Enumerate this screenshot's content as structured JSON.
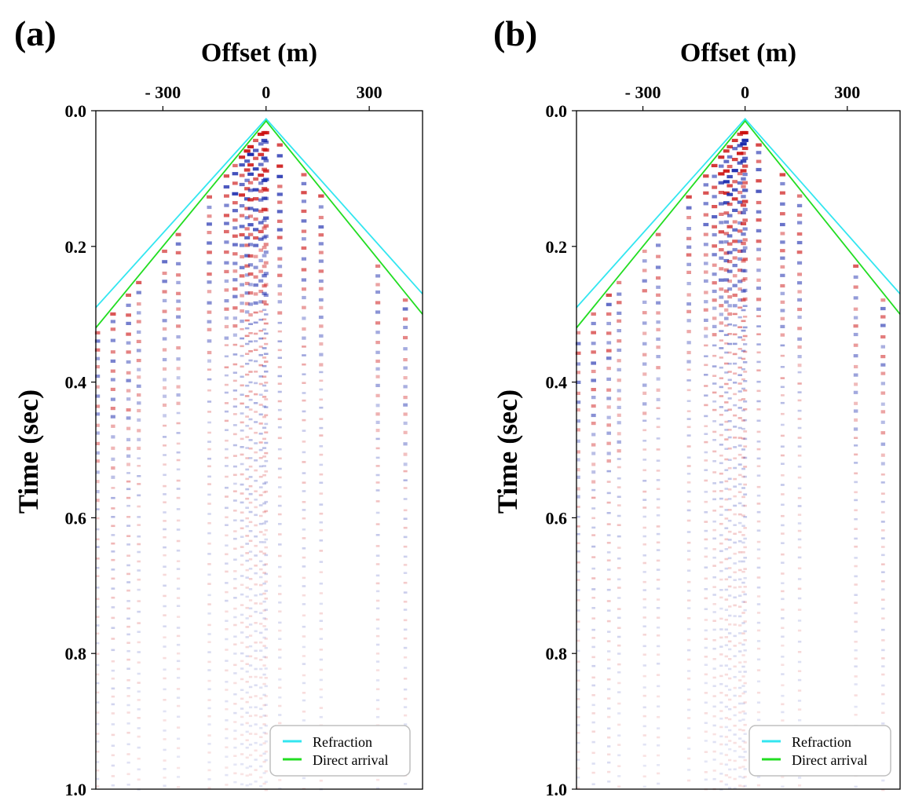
{
  "colors": {
    "refraction": "#33e6f0",
    "direct_arrival": "#22dd22",
    "positive_amplitude": "#cc1111",
    "negative_amplitude": "#1122aa",
    "frame": "#000000"
  },
  "chart_data": [
    {
      "type": "seismic-shot-gather",
      "panel_label": "(a)",
      "xlabel": "Offset (m)",
      "ylabel": "Time (sec)",
      "xticks": [
        -300,
        0,
        300
      ],
      "xtick_labels": [
        "- 300",
        "0",
        "300"
      ],
      "yticks": [
        0.0,
        0.2,
        0.4,
        0.6,
        0.8,
        1.0
      ],
      "ytick_labels": [
        "0.0",
        "0.2",
        "0.4",
        "0.6",
        "0.8",
        "1.0"
      ],
      "xlim": [
        -495,
        455
      ],
      "ylim": [
        0.0,
        1.0
      ],
      "legend": {
        "position": "bottom-right",
        "entries": [
          "Refraction",
          "Direct arrival"
        ]
      },
      "series": [
        {
          "name": "Refraction",
          "x": [
            -495,
            0,
            455
          ],
          "y": [
            0.29,
            0.012,
            0.27
          ]
        },
        {
          "name": "Direct arrival",
          "x": [
            -495,
            0,
            455
          ],
          "y": [
            0.32,
            0.015,
            0.3
          ]
        }
      ],
      "trace_offsets": [
        -490,
        -445,
        -400,
        -370,
        -295,
        -255,
        -165,
        -115,
        -90,
        -70,
        -55,
        -45,
        -30,
        -15,
        -5,
        0,
        40,
        110,
        160,
        325,
        405
      ],
      "trace_strengths": [
        0.6,
        0.7,
        0.7,
        0.6,
        0.6,
        0.6,
        0.7,
        0.8,
        0.9,
        0.95,
        1.0,
        1.0,
        1.0,
        1.0,
        1.0,
        1.0,
        0.9,
        0.8,
        0.7,
        0.6,
        0.6
      ]
    },
    {
      "type": "seismic-shot-gather",
      "panel_label": "(b)",
      "xlabel": "Offset (m)",
      "ylabel": "Time (sec)",
      "xticks": [
        -300,
        0,
        300
      ],
      "xtick_labels": [
        "- 300",
        "0",
        "300"
      ],
      "yticks": [
        0.0,
        0.2,
        0.4,
        0.6,
        0.8,
        1.0
      ],
      "ytick_labels": [
        "0.0",
        "0.2",
        "0.4",
        "0.6",
        "0.8",
        "1.0"
      ],
      "xlim": [
        -495,
        455
      ],
      "ylim": [
        0.0,
        1.0
      ],
      "legend": {
        "position": "bottom-right",
        "entries": [
          "Refraction",
          "Direct arrival"
        ]
      },
      "series": [
        {
          "name": "Refraction",
          "x": [
            -495,
            0,
            455
          ],
          "y": [
            0.29,
            0.012,
            0.27
          ]
        },
        {
          "name": "Direct arrival",
          "x": [
            -495,
            0,
            455
          ],
          "y": [
            0.32,
            0.015,
            0.3
          ]
        }
      ],
      "trace_offsets": [
        -490,
        -445,
        -400,
        -370,
        -295,
        -255,
        -165,
        -115,
        -90,
        -70,
        -55,
        -45,
        -30,
        -15,
        -5,
        0,
        40,
        110,
        160,
        325,
        405
      ],
      "trace_strengths": [
        0.6,
        0.7,
        0.7,
        0.6,
        0.6,
        0.6,
        0.7,
        0.8,
        0.9,
        0.95,
        1.0,
        1.0,
        1.0,
        1.0,
        1.0,
        1.0,
        0.9,
        0.8,
        0.7,
        0.6,
        0.6
      ]
    }
  ]
}
